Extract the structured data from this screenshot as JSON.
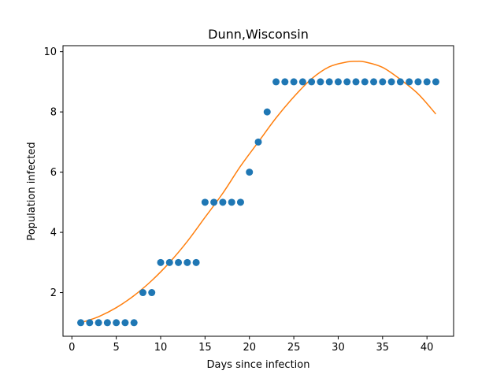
{
  "chart_data": {
    "type": "scatter",
    "title": "Dunn,Wisconsin",
    "xlabel": "Days since infection",
    "ylabel": "Population infected",
    "xlim": [
      -1,
      43
    ],
    "ylim": [
      0.55,
      10.2
    ],
    "x_ticks": [
      0,
      5,
      10,
      15,
      20,
      25,
      30,
      35,
      40
    ],
    "y_ticks": [
      2,
      4,
      6,
      8,
      10
    ],
    "grid": false,
    "series": [
      {
        "kind": "scatter",
        "color": "#1f77b4",
        "x": [
          1,
          2,
          3,
          4,
          5,
          6,
          7,
          8,
          9,
          10,
          11,
          12,
          13,
          14,
          15,
          16,
          17,
          18,
          19,
          20,
          21,
          22,
          23,
          24,
          25,
          26,
          27,
          28,
          29,
          30,
          31,
          32,
          33,
          34,
          35,
          36,
          37,
          38,
          39,
          40,
          41
        ],
        "y": [
          1,
          1,
          1,
          1,
          1,
          1,
          1,
          2,
          2,
          3,
          3,
          3,
          3,
          3,
          5,
          5,
          5,
          5,
          5,
          6,
          7,
          8,
          9,
          9,
          9,
          9,
          9,
          9,
          9,
          9,
          9,
          9,
          9,
          9,
          9,
          9,
          9,
          9,
          9,
          9,
          9
        ]
      },
      {
        "kind": "line",
        "color": "#ff7f0e",
        "x": [
          1,
          3,
          5,
          7,
          9,
          11,
          13,
          15,
          17,
          19,
          21,
          23,
          25,
          27,
          29,
          31,
          32,
          33,
          35,
          37,
          39,
          41
        ],
        "y": [
          1.0,
          1.2,
          1.5,
          1.9,
          2.4,
          3.0,
          3.7,
          4.5,
          5.3,
          6.2,
          7.0,
          7.8,
          8.5,
          9.1,
          9.5,
          9.66,
          9.68,
          9.66,
          9.48,
          9.08,
          8.6,
          7.93
        ]
      }
    ]
  }
}
